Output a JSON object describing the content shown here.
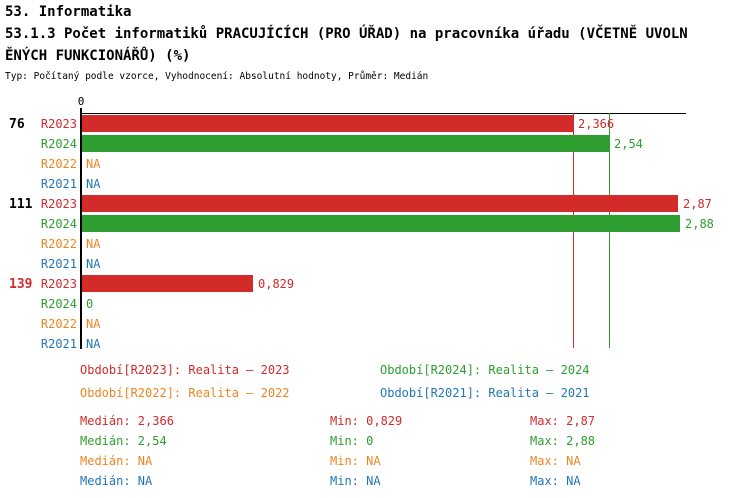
{
  "header": {
    "line1": "53. Informatika",
    "line2": "53.1.3 Počet informatiků PRACUJÍCÍCH (PRO ÚŘAD) na pracovníka úřadu (VČETNĚ UVOLN",
    "line3": "ĚNÝCH FUNKCIONÁŘŮ) (%)",
    "subtitle": "Typ: Počítaný podle vzorce, Vyhodnocení: Absolutní hodnoty, Průměr: Medián"
  },
  "colors": {
    "r2023": "#d32a2a",
    "r2024": "#2e9e30",
    "r2022": "#ef8522",
    "r2021": "#2277b4",
    "black": "#000000"
  },
  "axis": {
    "zero_label": "0"
  },
  "chart_data": {
    "type": "bar",
    "orientation": "horizontal",
    "title": "53.1.3 Počet informatiků PRACUJÍCÍCH (PRO ÚŘAD) na pracovníka úřadu (VČETNĚ UVOLNĚNÝCH FUNKCIONÁŘŮ) (%)",
    "categories": [
      "76",
      "111",
      "139"
    ],
    "category_colors": [
      "black",
      "black",
      "r2023"
    ],
    "series": [
      {
        "name": "R2023",
        "color_key": "r2023",
        "values": [
          2.366,
          2.87,
          0.829
        ],
        "displays": [
          "2,366",
          "2,87",
          "0,829"
        ]
      },
      {
        "name": "R2024",
        "color_key": "r2024",
        "values": [
          2.54,
          2.88,
          0
        ],
        "displays": [
          "2,54",
          "2,88",
          "0"
        ]
      },
      {
        "name": "R2022",
        "color_key": "r2022",
        "values": [
          null,
          null,
          null
        ],
        "displays": [
          "NA",
          "NA",
          "NA"
        ]
      },
      {
        "name": "R2021",
        "color_key": "r2021",
        "values": [
          null,
          null,
          null
        ],
        "displays": [
          "NA",
          "NA",
          "NA"
        ]
      }
    ],
    "median_lines": [
      {
        "series": "R2023",
        "value": 2.366,
        "color_key": "r2023"
      },
      {
        "series": "R2024",
        "value": 2.54,
        "color_key": "r2024"
      }
    ],
    "x_start": 0,
    "grid": false,
    "legend_position": "bottom"
  },
  "legend": [
    {
      "label": "Období[R2023]: Realita – 2023",
      "color_key": "r2023"
    },
    {
      "label": "Období[R2024]: Realita – 2024",
      "color_key": "r2024"
    },
    {
      "label": "Období[R2022]: Realita – 2022",
      "color_key": "r2022"
    },
    {
      "label": "Období[R2021]: Realita – 2021",
      "color_key": "r2021"
    }
  ],
  "stats": [
    {
      "color_key": "r2023",
      "median_label": "Medián",
      "median": "2,366",
      "min_label": "Min",
      "min": "0,829",
      "max_label": "Max",
      "max": "2,87"
    },
    {
      "color_key": "r2024",
      "median_label": "Medián",
      "median": "2,54",
      "min_label": "Min",
      "min": "0",
      "max_label": "Max",
      "max": "2,88"
    },
    {
      "color_key": "r2022",
      "median_label": "Medián",
      "median": "NA",
      "min_label": "Min",
      "min": "NA",
      "max_label": "Max",
      "max": "NA"
    },
    {
      "color_key": "r2021",
      "median_label": "Medián",
      "median": "NA",
      "min_label": "Min",
      "min": "NA",
      "max_label": "Max",
      "max": "NA"
    }
  ]
}
